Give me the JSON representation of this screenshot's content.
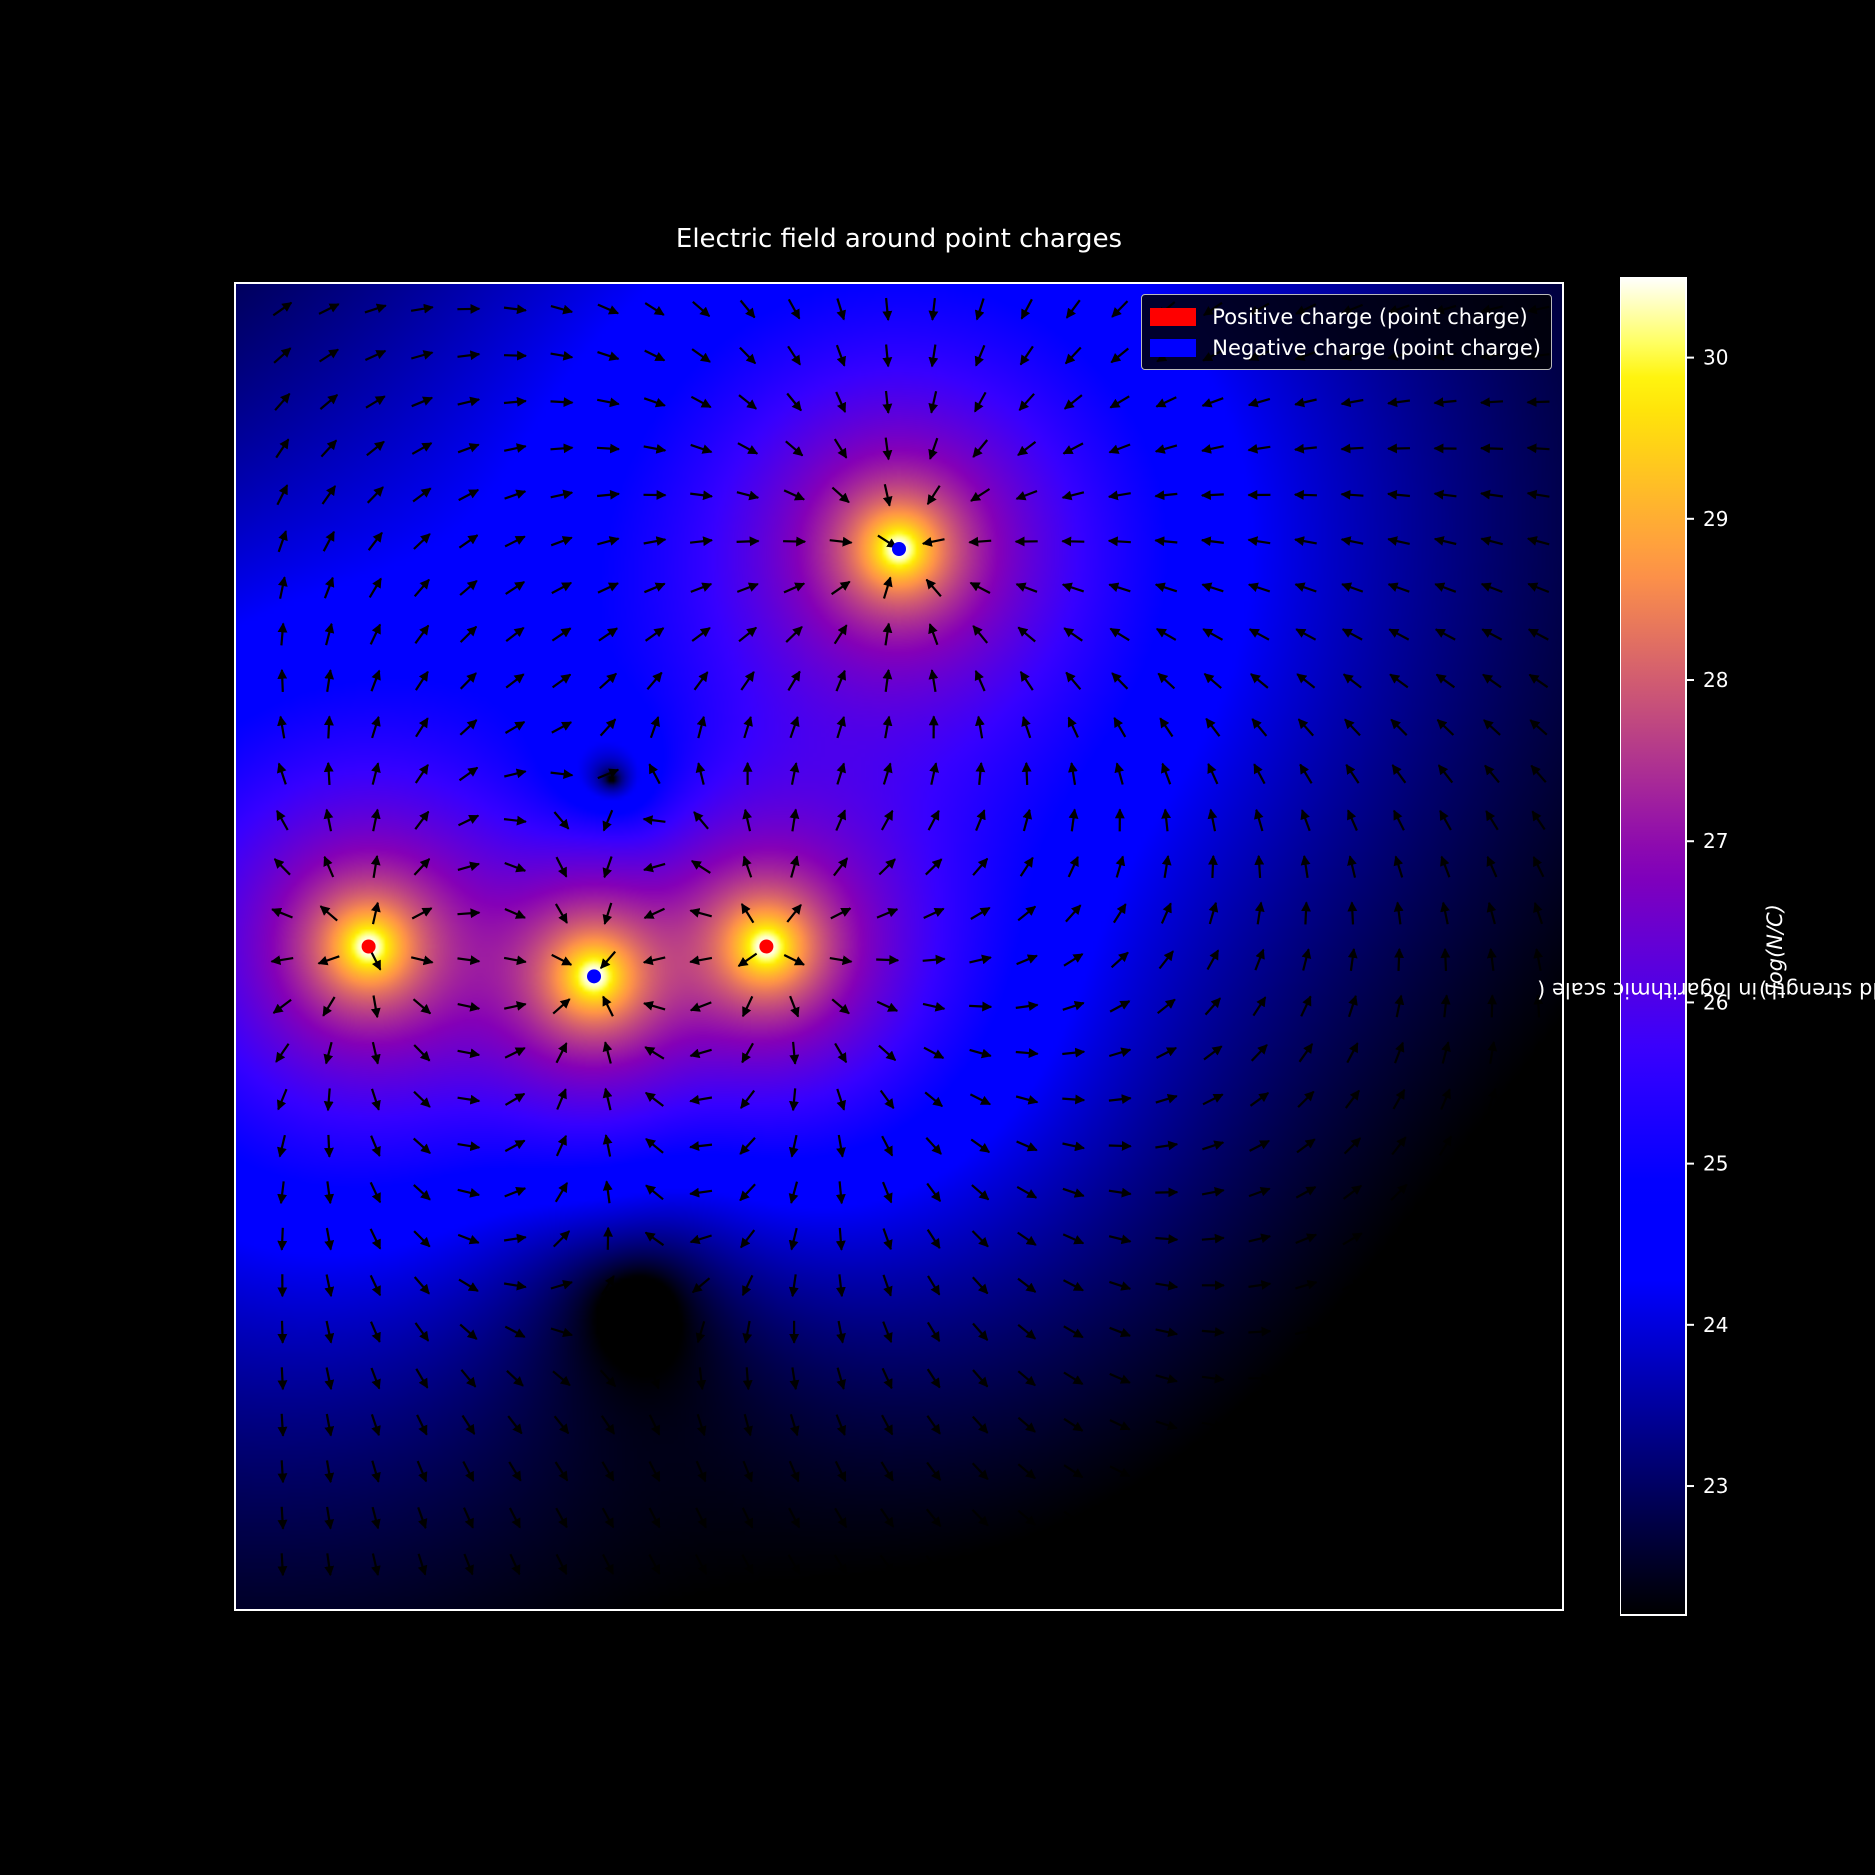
{
  "chart_data": {
    "type": "heatmap",
    "title": "Electric field around point charges",
    "field_description": "quiver arrows show field direction; background colour shows log field strength",
    "x_range": [
      -10,
      10
    ],
    "y_range": [
      -10,
      10
    ],
    "charges": [
      {
        "sign": "positive",
        "x": -8,
        "y": 0
      },
      {
        "sign": "positive",
        "x": -2,
        "y": 0
      },
      {
        "sign": "negative",
        "x": -4.6,
        "y": -0.45
      },
      {
        "sign": "negative",
        "x": 0,
        "y": 6
      }
    ],
    "legend": {
      "placement": "top-right",
      "entries": [
        {
          "label": "Positive charge (point charge)",
          "color": "#ff0000"
        },
        {
          "label": "Negative charge (point charge)",
          "color": "#0000ff"
        }
      ]
    },
    "colorbar": {
      "colormap": "gnuplot2",
      "range": [
        22.2,
        30.5
      ],
      "ticks": [
        "23",
        "24",
        "25",
        "26",
        "27",
        "28",
        "29",
        "30"
      ],
      "label": "Electric field strength in logarithmic scale (log(N/C))",
      "label_prefix": "Electric field strength in logarithmic scale (",
      "label_unit": "log(N/C)",
      "label_suffix": ")"
    },
    "quiver_grid": {
      "nx": 28,
      "ny": 29
    }
  }
}
